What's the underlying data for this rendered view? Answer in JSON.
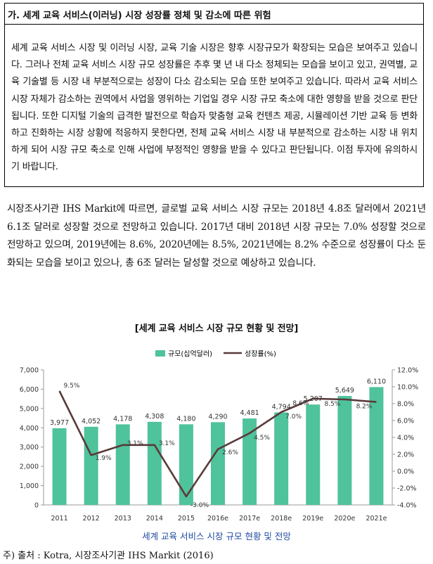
{
  "risk_box": {
    "title": "가. 세계 교육 서비스(이러닝) 시장 성장률 정체 및 감소에 따른 위험",
    "body": "세계 교육 서비스 시장 및 이러닝 시장, 교육 기술 시장은 향후 시장규모가 확장되는 모습은 보여주고 있습니다. 그러나 전체 교육 서비스 시장 규모 성장률은 추후 몇 년 내 다소 정체되는 모습을 보이고 있고, 권역별, 교육 기술별  등 시장 내 부분적으로는 성장이 다소 감소되는 모습 또한 보여주고 있습니다. 따라서 교육 서비스 시장 자체가 감소하는 권역에서 사업을 영위하는 기업일 경우 시장 규모 축소에 대한 영향을 받을 것으로 판단됩니다. 또한 디지털 기술의 급격한 발전으로 학습자 맞춤형 교육 컨텐츠 제공, 시뮬레이션 기반 교육 등 변화하고 진화하는 시장 상황에 적응하지 못한다면, 전체 교육 서비스 시장 내 부분적으로 감소하는 시장 내 위치하게 되어 시장 규모 축소로 인해 사업에 부정적인 영향을 받을 수 있다고 판단됩니다. 이점 투자에 유의하시기 바랍니다."
  },
  "paragraph": "시장조사기관 IHS Markit에 따르면, 글로벌 교육 서비스 시장 규모는 2018년 4.8조 달러에서 2021년 6.1조 달러로 성장할 것으로 전망하고 있습니다. 2017년 대비 2018년 시장 규모는 7.0% 성장할 것으로 전망하고 있으며, 2019년에는 8.6%, 2020년에는 8.5%, 2021년에는 8.2% 수준으로 성장률이 다소 둔화되는 모습을 보이고 있으나, 총 6조 달러는 달성할 것으로 예상하고 있습니다.",
  "chart_heading": "[세계 교육 서비스 시장 규모 현황 및 전망]",
  "caption": "세계 교육 서비스 시장 규모 현황 및 전망",
  "source": "주) 출처 : Kotra, 시장조사기관 IHS Markit (2016)",
  "chart_data": {
    "type": "bar",
    "categories": [
      "2011",
      "2012",
      "2013",
      "2014",
      "2015",
      "2016e",
      "2017e",
      "2018e",
      "2019e",
      "2020e",
      "2021e"
    ],
    "series": [
      {
        "name": "규모(십억달러)",
        "type": "bar",
        "axis": "left",
        "values": [
          3977,
          4052,
          4178,
          4308,
          4180,
          4290,
          4481,
          4794,
          5207,
          5649,
          6110
        ],
        "labels": [
          "3,977",
          "4,052",
          "4,178",
          "4,308",
          "4,180",
          "4,290",
          "4,481",
          "4,794",
          "5,207",
          "5,649",
          "6,110"
        ]
      },
      {
        "name": "성장률(%)",
        "type": "line",
        "axis": "right",
        "values": [
          9.5,
          1.9,
          3.1,
          3.1,
          -3.0,
          2.6,
          4.5,
          7.0,
          8.6,
          8.5,
          8.2
        ],
        "labels": [
          "9.5%",
          "1.9%",
          "3.1%",
          "3.1%",
          "-3.0%",
          "2.6%",
          "4.5%",
          "7.0%",
          "8.6%",
          "8.5%",
          "8.2%"
        ]
      }
    ],
    "y_left": {
      "min": 0,
      "max": 7000,
      "ticks": [
        0,
        1000,
        2000,
        3000,
        4000,
        5000,
        6000,
        7000
      ],
      "tick_labels": [
        "0",
        "1,000",
        "2,000",
        "3,000",
        "4,000",
        "5,000",
        "6,000",
        "7,000"
      ]
    },
    "y_right": {
      "min": -4,
      "max": 12,
      "ticks": [
        -4,
        -2,
        0,
        2,
        4,
        6,
        8,
        10,
        12
      ],
      "tick_labels": [
        "-4.0%",
        "-2.0%",
        "0.0%",
        "2.0%",
        "4.0%",
        "6.0%",
        "8.0%",
        "10.0%",
        "12.0%"
      ]
    },
    "legend_position": "top-center",
    "grid": false,
    "colors": {
      "bar": "#4fc39b",
      "line": "#5a3a3a",
      "axis": "#9a9a9a",
      "label": "#333333"
    }
  }
}
